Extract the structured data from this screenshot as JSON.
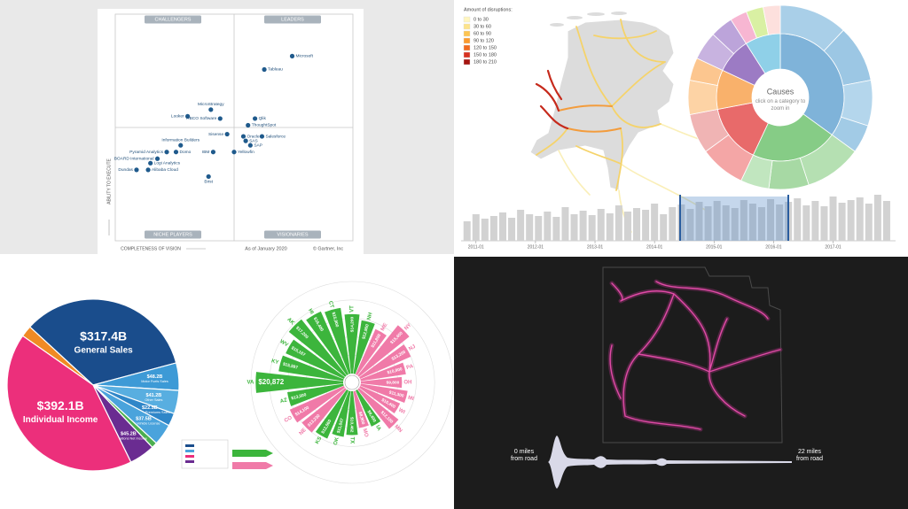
{
  "chart_data": [
    {
      "type": "scatter",
      "quadrant_labels": [
        "CHALLENGERS",
        "LEADERS",
        "NICHE PLAYERS",
        "VISIONARIES"
      ],
      "y_label": "ABILITY TO EXECUTE",
      "x_label": "COMPLETENESS OF VISION",
      "annotations": [
        "As of January 2020",
        "© Gartner, Inc"
      ],
      "labels": [
        "Microsoft",
        "Tableau",
        "MicroStrategy",
        "Looker",
        "TIBCO Software",
        "Qlik",
        "ThoughtSpot",
        "Sisense",
        "Oracle",
        "SAS",
        "SAP",
        "Salesforce",
        "Yellowfin",
        "IBM",
        "Birst",
        "Information Builders",
        "Pyramid Analytics",
        "Domo",
        "BOARD International",
        "Logi Analytics",
        "Dundas",
        "Alibaba Cloud"
      ],
      "x": [
        75,
        63,
        40,
        30,
        44,
        59,
        56,
        47,
        54,
        55,
        57,
        62,
        50,
        41,
        39,
        27,
        21,
        25,
        17,
        14,
        8,
        13
      ],
      "values": [
        82,
        76,
        58,
        55,
        54,
        54,
        51,
        47,
        46,
        44,
        42,
        46,
        39,
        39,
        28,
        42,
        39,
        39,
        36,
        34,
        31,
        31
      ],
      "color": "#1f5a8c",
      "xlim": [
        0,
        100
      ],
      "ylim": [
        0,
        100
      ]
    },
    {
      "type": "map",
      "legend_title": "Amount of disruptions:",
      "legend": [
        {
          "label": "0 to 30",
          "color": "#fff6bf"
        },
        {
          "label": "30 to 60",
          "color": "#fde38a"
        },
        {
          "label": "60 to 90",
          "color": "#fdc451"
        },
        {
          "label": "90 to 120",
          "color": "#fb9a2e"
        },
        {
          "label": "120 to 150",
          "color": "#f06a1e"
        },
        {
          "label": "150 to 180",
          "color": "#d7301f"
        },
        {
          "label": "180 to 210",
          "color": "#a5150f"
        }
      ]
    },
    {
      "type": "sunburst",
      "title": "Causes",
      "subtitle": "click on a category to zoom in",
      "inner": {
        "values": [
          35,
          22,
          15,
          10,
          9,
          9
        ],
        "colors": [
          "#7fb3d9",
          "#86cc86",
          "#e86a6a",
          "#f9b16b",
          "#9c7bc4",
          "#8fd0e8"
        ]
      },
      "outer": {
        "values": [
          12,
          10,
          8,
          5,
          10,
          7,
          5,
          8,
          7,
          6,
          4,
          5,
          4,
          3,
          3,
          3
        ],
        "colors": [
          "#a9cfe8",
          "#9cc7e4",
          "#b4d6ec",
          "#a2cbe6",
          "#b5e0b2",
          "#a7d9a4",
          "#c1e6bf",
          "#f4a6a6",
          "#f0b4b4",
          "#fdd3a5",
          "#fcc68f",
          "#c8b3e0",
          "#bca4da",
          "#f7b6d2",
          "#d9f0a3",
          "#fde0dd"
        ]
      }
    },
    {
      "type": "bar",
      "x": [
        2010.85,
        2011,
        2011.15,
        2011.3,
        2011.45,
        2011.6,
        2011.75,
        2011.9,
        2012.05,
        2012.2,
        2012.35,
        2012.5,
        2012.65,
        2012.8,
        2012.95,
        2013.1,
        2013.25,
        2013.4,
        2013.55,
        2013.7,
        2013.85,
        2014,
        2014.15,
        2014.3,
        2014.45,
        2014.6,
        2014.75,
        2014.9,
        2015.05,
        2015.2,
        2015.35,
        2015.5,
        2015.65,
        2015.8,
        2015.95,
        2016.1,
        2016.25,
        2016.4,
        2016.55,
        2016.7,
        2016.85,
        2017,
        2017.15,
        2017.3,
        2017.45,
        2017.6,
        2017.75,
        2017.9
      ],
      "values": [
        22,
        30,
        25,
        28,
        32,
        26,
        35,
        30,
        28,
        33,
        27,
        38,
        30,
        34,
        29,
        36,
        31,
        40,
        33,
        37,
        35,
        42,
        30,
        38,
        41,
        36,
        44,
        39,
        45,
        40,
        37,
        46,
        42,
        38,
        47,
        41,
        44,
        48,
        40,
        45,
        39,
        50,
        43,
        46,
        49,
        42,
        52,
        45
      ],
      "color": "#d2d2d2",
      "xlim": [
        2010.75,
        2018.05
      ],
      "ylim": [
        0,
        60
      ],
      "xticks": [
        {
          "value": 2011,
          "label": "2011-01"
        },
        {
          "value": 2012,
          "label": "2012-01"
        },
        {
          "value": 2013,
          "label": "2013-01"
        },
        {
          "value": 2014,
          "label": "2014-01"
        },
        {
          "value": 2015,
          "label": "2015-01"
        },
        {
          "value": 2016,
          "label": "2016-01"
        },
        {
          "value": 2017,
          "label": "2017-01"
        }
      ]
    },
    {
      "type": "pie",
      "categories": [
        null,
        "General Sales",
        "Motor Fuels Sales",
        "Other Sales",
        "Insurance Premiums Sales",
        "Motor Vehicle License",
        null,
        "Corporations Net Income",
        "Individual Income"
      ],
      "values": [
        20,
        317.4,
        48.2,
        41.2,
        22.5,
        37.5,
        10,
        45.2,
        392.1
      ],
      "value_labels": [
        null,
        "$317.4B",
        "$48.2B",
        "$41.2B",
        "$22.5B",
        "$37.5B",
        null,
        "$45.2B",
        "$392.1B"
      ],
      "colors": [
        "#f08a24",
        "#1a4d8c",
        "#3d9ad6",
        "#58aee0",
        "#2f86c8",
        "#4aa3dc",
        "#4caf50",
        "#6a2c91",
        "#ec2f7b"
      ]
    },
    {
      "type": "radial-bar",
      "categories": [
        "VT",
        "NH",
        "ME",
        "NY",
        "NJ",
        "PA",
        "OH",
        "MI",
        "WI",
        "MN",
        "IA",
        "MO",
        "TX",
        "OK",
        "KS",
        "NE",
        "CO",
        "AZ",
        "VA",
        "KY",
        "WV",
        "AK",
        "HI",
        "CT"
      ],
      "values": [
        14200,
        12900,
        11800,
        15400,
        13200,
        10900,
        9800,
        11300,
        10400,
        12100,
        9400,
        8900,
        10462,
        11047,
        12560,
        13230,
        14100,
        13500,
        20872,
        15597,
        15167,
        17200,
        16400,
        15900
      ],
      "value_labels": [
        "$14,200",
        "$12,900",
        "$11,800",
        "$15,400",
        "$13,200",
        "$10,900",
        "$9,800",
        "$11,300",
        "$10,400",
        "$12,100",
        "$9,400",
        "$8,900",
        "$10,462",
        "$11,047",
        "$12,560",
        "$13,230",
        "$14,100",
        "$13,500",
        "$20,872",
        "$15,597",
        "$15,167",
        "$17,200",
        "$16,400",
        "$15,900"
      ],
      "colors": [
        "#3cb53c",
        "#3cb53c",
        "#f07aa8",
        "#f07aa8",
        "#f07aa8",
        "#f07aa8",
        "#f07aa8",
        "#f07aa8",
        "#f07aa8",
        "#f07aa8",
        "#3cb53c",
        "#f07aa8",
        "#3cb53c",
        "#3cb53c",
        "#3cb53c",
        "#f07aa8",
        "#f07aa8",
        "#3cb53c",
        "#3cb53c",
        "#3cb53c",
        "#3cb53c",
        "#3cb53c",
        "#3cb53c",
        "#3cb53c"
      ],
      "rlim": [
        0,
        22000
      ]
    },
    {
      "type": "density",
      "labels": [
        "0 miles from road",
        "22 miles from road"
      ]
    }
  ]
}
